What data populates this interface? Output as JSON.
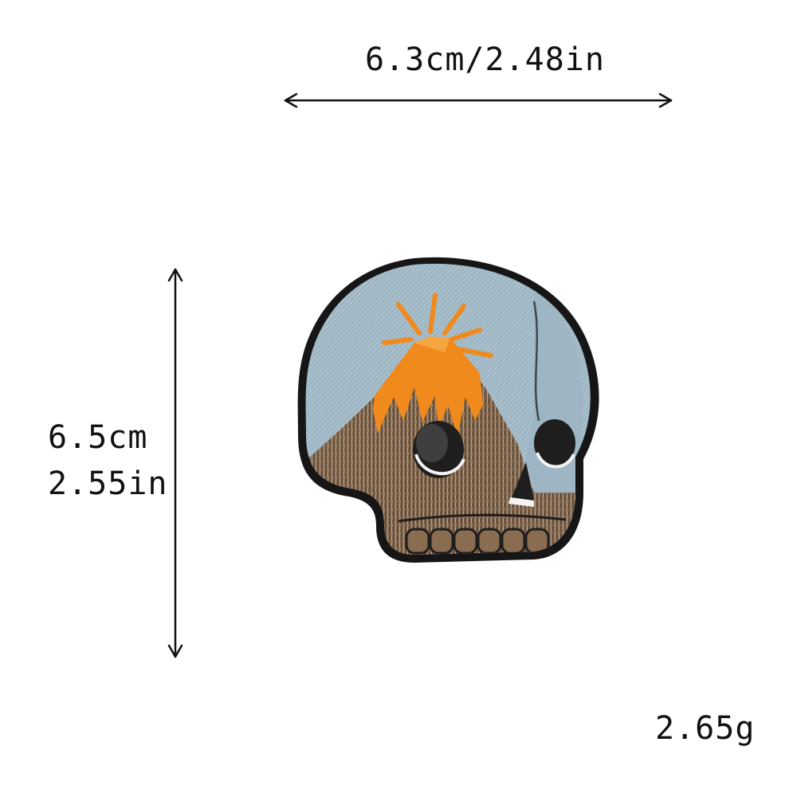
{
  "dimensions": {
    "width_text": "6.3cm/2.48in",
    "height_cm_text": "6.5cm",
    "height_in_text": "2.55in",
    "weight_text": "2.65g"
  },
  "patch": {
    "subject": "skull-volcano-embroidered-patch",
    "colors": {
      "border": "#161616",
      "sky": "#a9c0cc",
      "lava": "#f08a1c",
      "rock": "#7a6048",
      "dark": "#1e1e1e",
      "white": "#f4f4f4"
    }
  }
}
